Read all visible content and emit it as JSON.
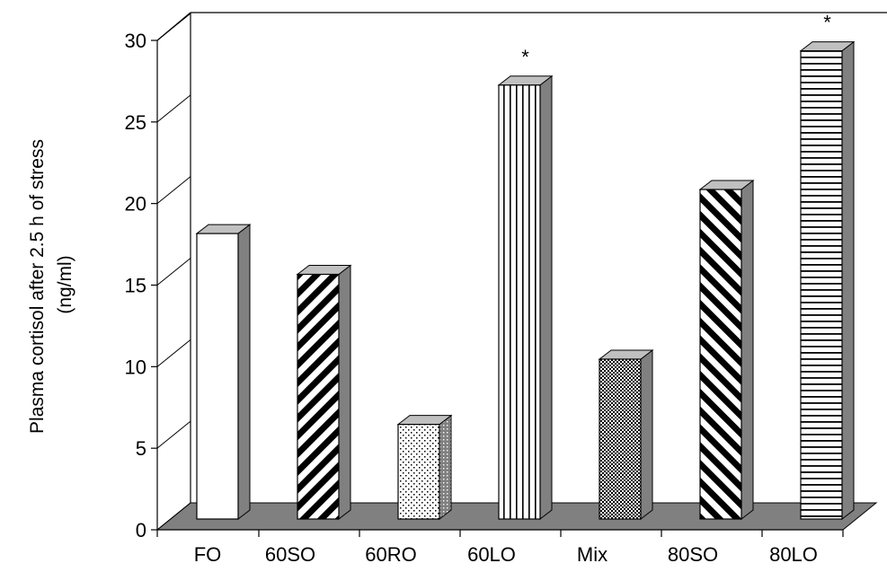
{
  "chart_data": {
    "type": "bar",
    "style": "3d",
    "categories": [
      "FO",
      "60SO",
      "60RO",
      "60LO",
      "Mix",
      "80SO",
      "80LO"
    ],
    "values": [
      17.5,
      15.0,
      5.8,
      26.6,
      9.8,
      20.2,
      28.7
    ],
    "annotations": [
      "",
      "",
      "",
      "*",
      "",
      "",
      "*"
    ],
    "patterns": [
      "plain-white",
      "diagonal-forward-thick",
      "sparse-dots",
      "vertical-stripes",
      "checker-dots",
      "diagonal-backward-thick",
      "horizontal-stripes"
    ],
    "title": "",
    "xlabel": "",
    "ylabel_lines": [
      "Plasma cortisol after 2.5 h of stress",
      "(ng/ml)"
    ],
    "ylim": [
      0,
      30
    ],
    "yticks": [
      "0",
      "5",
      "10",
      "15",
      "20",
      "25",
      "30"
    ],
    "grid": false,
    "floor_color": "#808080",
    "side_color": "#808080",
    "top_color": "#c0c0c0"
  }
}
